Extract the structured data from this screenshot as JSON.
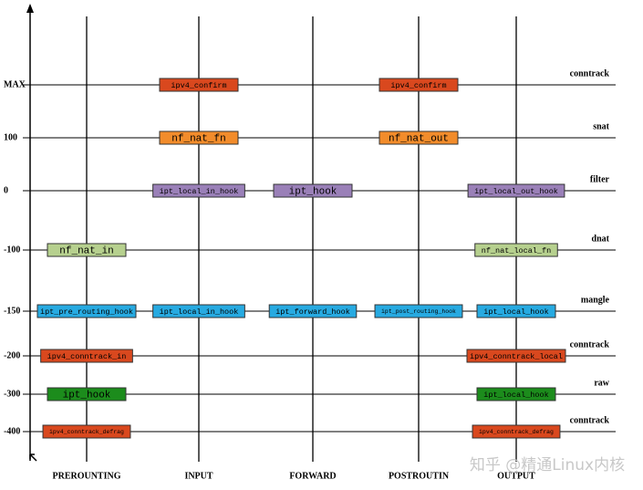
{
  "columns": [
    "PREROUNTING",
    "INPUT",
    "FORWARD",
    "POSTROUTIN",
    "OUTPUT"
  ],
  "rows": [
    {
      "priority": "MAX",
      "table": "conntrack",
      "color": "#d9481e",
      "cells": [
        null,
        "ipv4_confirm",
        null,
        "ipv4_confirm",
        null
      ]
    },
    {
      "priority": "100",
      "table": "snat",
      "color": "#f28c2b",
      "cells": [
        null,
        "nf_nat_fn",
        null,
        "nf_nat_out",
        null
      ]
    },
    {
      "priority": "0",
      "table": "filter",
      "color": "#9a80b8",
      "cells": [
        null,
        "ipt_local_in_hook",
        "ipt_hook",
        null,
        "ipt_local_out_hook"
      ]
    },
    {
      "priority": "-100",
      "table": "dnat",
      "color": "#b6d08e",
      "cells": [
        "nf_nat_in",
        null,
        null,
        null,
        "nf_nat_local_fn"
      ]
    },
    {
      "priority": "-150",
      "table": "mangle",
      "color": "#27aae1",
      "cells": [
        "ipt_pre_routing_hook",
        "ipt_local_in_hook",
        "ipt_forward_hook",
        "ipt_post_routing_hook",
        "ipt_local_hook"
      ]
    },
    {
      "priority": "-200",
      "table": "conntrack",
      "color": "#d9481e",
      "cells": [
        "ipv4_conntrack_in",
        null,
        null,
        null,
        "ipv4_conntrack_local"
      ]
    },
    {
      "priority": "-300",
      "table": "raw",
      "color": "#1c8c1c",
      "cells": [
        "ipt_hook",
        null,
        null,
        null,
        "ipt_local_hook"
      ]
    },
    {
      "priority": "-400",
      "table": "conntrack",
      "color": "#d9481e",
      "cells": [
        "ipv4_conntrack_defrag",
        null,
        null,
        null,
        "ipv4_conntrack_defrag"
      ]
    }
  ],
  "watermark": "知乎 @精通Linux内核"
}
